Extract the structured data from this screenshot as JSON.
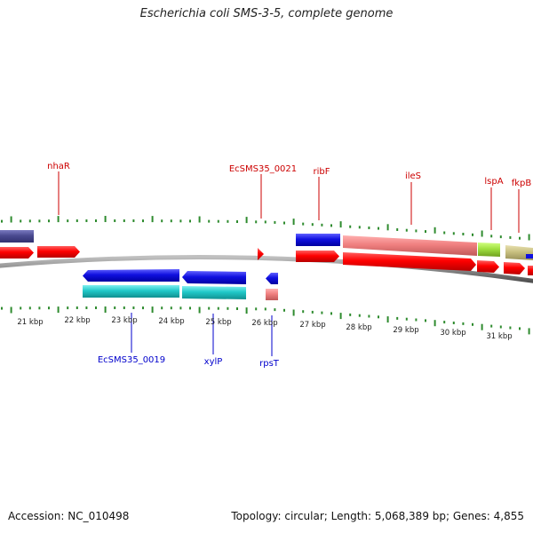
{
  "title": "Escherichia coli SMS-3-5, complete genome",
  "footer": {
    "accession": "Accession: NC_010498",
    "summary": "Topology: circular; Length: 5,068,389 bp; Genes: 4,855"
  },
  "colors": {
    "backbone": "#8a8a8a",
    "tick": "#2e8b2e",
    "forward_label": "#cc0000",
    "reverse_label": "#0000cc",
    "cds": "#ff0000",
    "gene_blue": "#1010e0",
    "gene_cyan": "#1cc8c8",
    "gene_salmon": "#f08080",
    "gene_slate": "#4a4a90",
    "gene_lime": "#a0e040",
    "gene_khaki": "#c8c080"
  },
  "kbp_labels": [
    "21 kbp",
    "22 kbp",
    "23 kbp",
    "24 kbp",
    "25 kbp",
    "26 kbp",
    "27 kbp",
    "28 kbp",
    "29 kbp",
    "30 kbp",
    "31 kbp"
  ],
  "gene_labels": {
    "top": [
      "nhaR",
      "EcSMS35_0021",
      "ribF",
      "ileS",
      "lspA",
      "fkpB"
    ],
    "bottom": [
      "EcSMS35_0019",
      "xylP",
      "rpsT"
    ]
  }
}
